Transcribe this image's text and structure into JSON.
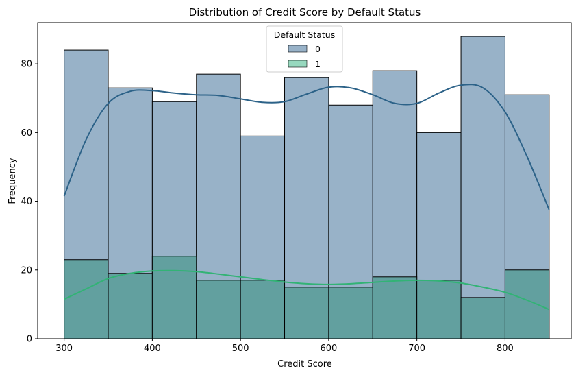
{
  "colors": {
    "series0_fill": "#98b2c8",
    "series1_fill": "#62a09f",
    "series0_legend": "#98b2c8",
    "series1_legend": "#97d8be",
    "kde0": "#2c6288",
    "kde1": "#32b375",
    "edge": "#000000"
  },
  "chart_data": {
    "type": "bar",
    "title": "Distribution of Credit Score by Default Status",
    "xlabel": "Credit Score",
    "ylabel": "Frequency",
    "xlim": [
      270,
      875
    ],
    "ylim": [
      0,
      92
    ],
    "xticks": [
      300,
      400,
      500,
      600,
      700,
      800
    ],
    "yticks": [
      0,
      20,
      40,
      60,
      80
    ],
    "grid": false,
    "legend": {
      "title": "Default Status",
      "placement": "top-center"
    },
    "bin_edges": [
      300,
      350,
      400,
      450,
      500,
      550,
      600,
      650,
      700,
      750,
      800,
      850
    ],
    "series": [
      {
        "name": "0",
        "values": [
          84,
          73,
          69,
          77,
          59,
          76,
          68,
          78,
          60,
          88,
          71
        ],
        "kde": {
          "x": [
            300,
            325,
            350,
            375,
            400,
            425,
            450,
            475,
            500,
            525,
            550,
            575,
            600,
            625,
            650,
            675,
            700,
            725,
            750,
            775,
            800,
            825,
            850
          ],
          "y": [
            41.5,
            58,
            68.5,
            72,
            72.2,
            71.5,
            71,
            70.8,
            69.8,
            68.8,
            69,
            71.2,
            73.2,
            73,
            71,
            68.5,
            68.5,
            71.5,
            73.8,
            73,
            66,
            53,
            37.5
          ]
        }
      },
      {
        "name": "1",
        "values": [
          23,
          19,
          24,
          17,
          17,
          15,
          15,
          18,
          17,
          12,
          20
        ],
        "kde": {
          "x": [
            300,
            325,
            350,
            375,
            400,
            425,
            450,
            475,
            500,
            525,
            550,
            575,
            600,
            625,
            650,
            675,
            700,
            725,
            750,
            775,
            800,
            825,
            850
          ],
          "y": [
            11.5,
            14.5,
            17.5,
            19,
            19.7,
            19.8,
            19.5,
            18.8,
            18,
            17.2,
            16.5,
            16,
            15.8,
            16,
            16.4,
            16.8,
            17,
            16.8,
            16.2,
            15,
            13.5,
            11.2,
            8.5
          ]
        }
      }
    ]
  }
}
